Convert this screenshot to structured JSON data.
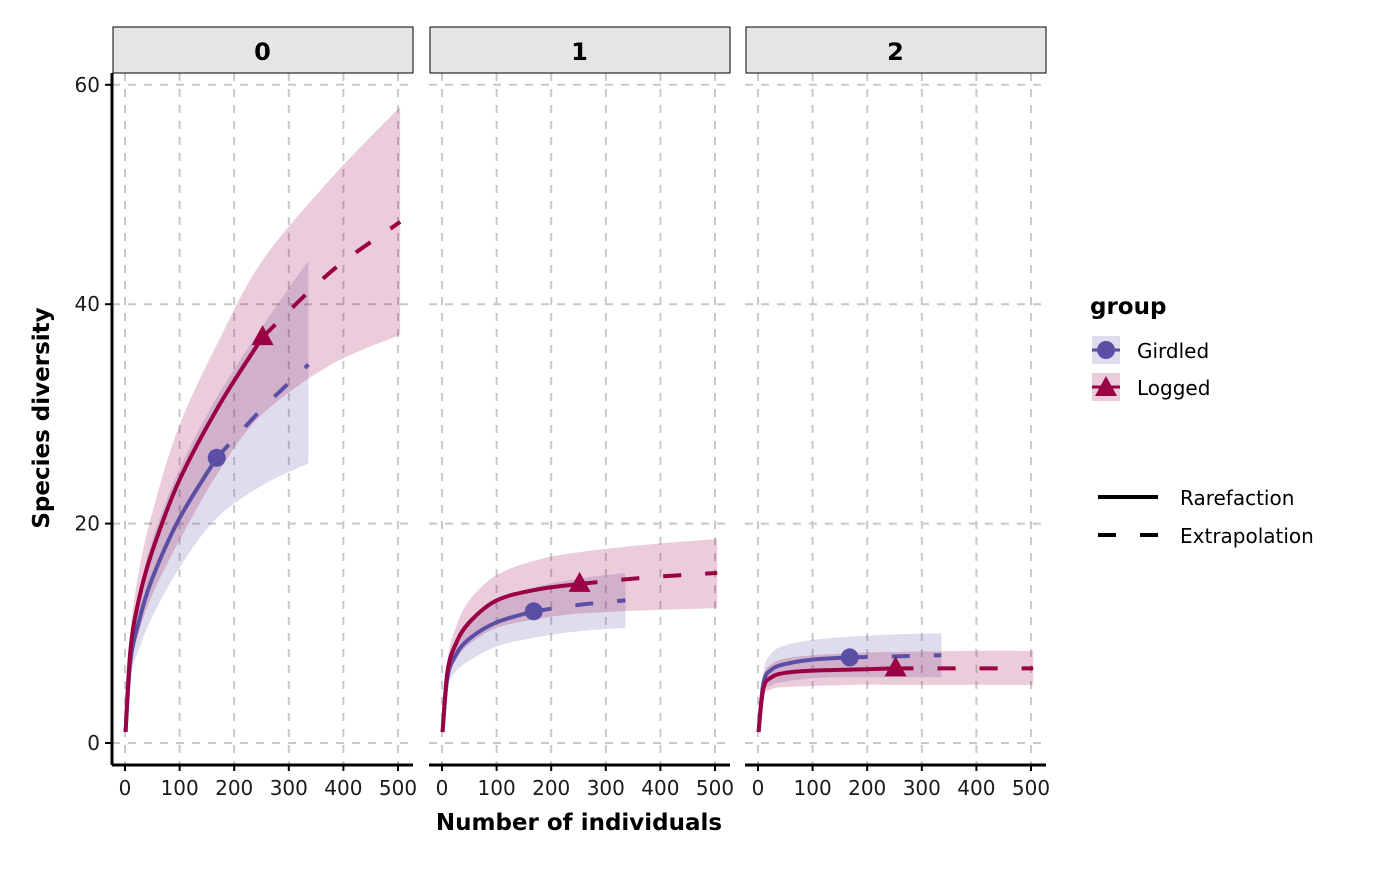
{
  "chart_data": {
    "type": "line",
    "title": "",
    "xlabel": "Number of individuals",
    "ylabel": "Species diversity",
    "ylim": [
      0,
      60
    ],
    "xlim": [
      0,
      500
    ],
    "x_ticks": [
      "0",
      "100",
      "200",
      "300",
      "400",
      "500"
    ],
    "y_ticks": [
      "0",
      "20",
      "40",
      "60"
    ],
    "grid": true,
    "facets": [
      "0",
      "1",
      "2"
    ],
    "legend": {
      "title": "group",
      "placement": "right",
      "groups": [
        {
          "name": "Girdled",
          "color": "#5B4FA5",
          "shape": "circle"
        },
        {
          "name": "Logged",
          "color": "#9B0045",
          "shape": "triangle"
        }
      ],
      "linetypes": [
        "Rarefaction",
        "Extrapolation"
      ]
    },
    "series": [
      {
        "facet": "0",
        "group": "Girdled",
        "n_obs": 168,
        "s_obs": 26,
        "n": [
          1,
          10,
          25,
          50,
          100,
          168,
          252,
          336
        ],
        "est": [
          1,
          7.5,
          11,
          15,
          20.5,
          26,
          30.5,
          34.5
        ],
        "lower": [
          1,
          6,
          8.5,
          11.5,
          16,
          20.5,
          23.5,
          25.5
        ],
        "upper": [
          1,
          9,
          13.5,
          18.5,
          25,
          31.5,
          38,
          44
        ]
      },
      {
        "facet": "0",
        "group": "Logged",
        "n_obs": 252,
        "s_obs": 37,
        "n": [
          1,
          10,
          25,
          50,
          100,
          175,
          252,
          378,
          504
        ],
        "est": [
          1,
          8.5,
          13,
          17.5,
          24,
          31,
          37,
          43,
          47.5
        ],
        "lower": [
          1,
          6.5,
          10,
          13.5,
          18.5,
          25,
          30,
          34.5,
          37.2
        ],
        "upper": [
          1,
          10,
          15.5,
          21,
          29,
          37,
          44,
          51.5,
          58
        ]
      },
      {
        "facet": "1",
        "group": "Girdled",
        "n_obs": 168,
        "s_obs": 12,
        "n": [
          1,
          10,
          25,
          50,
          100,
          168,
          252,
          336
        ],
        "est": [
          1,
          6,
          8,
          9.5,
          11,
          12,
          12.6,
          13
        ],
        "lower": [
          1,
          5,
          6.5,
          7.5,
          8.8,
          9.6,
          10.2,
          10.5
        ],
        "upper": [
          1,
          7,
          9.5,
          11.3,
          13,
          14.2,
          15,
          15.5
        ]
      },
      {
        "facet": "1",
        "group": "Logged",
        "n_obs": 252,
        "s_obs": 14.5,
        "n": [
          1,
          10,
          25,
          50,
          100,
          175,
          252,
          378,
          504
        ],
        "est": [
          1,
          6.5,
          9,
          11,
          13,
          14,
          14.5,
          15.1,
          15.5
        ],
        "lower": [
          1,
          5.5,
          7.5,
          9,
          10.5,
          11.3,
          11.8,
          12.1,
          12.3
        ],
        "upper": [
          1,
          7.5,
          10.5,
          13,
          15.3,
          16.7,
          17.4,
          18.1,
          18.6
        ]
      },
      {
        "facet": "2",
        "group": "Girdled",
        "n_obs": 168,
        "s_obs": 7.8,
        "n": [
          1,
          10,
          25,
          50,
          100,
          168,
          252,
          336
        ],
        "est": [
          1,
          5.5,
          6.7,
          7.2,
          7.6,
          7.8,
          7.9,
          8
        ],
        "lower": [
          1,
          4.5,
          5.3,
          5.6,
          5.9,
          6,
          6,
          6
        ],
        "upper": [
          1,
          6.5,
          8.2,
          8.9,
          9.4,
          9.7,
          9.9,
          10
        ]
      },
      {
        "facet": "2",
        "group": "Logged",
        "n_obs": 252,
        "s_obs": 6.8,
        "n": [
          1,
          10,
          25,
          50,
          100,
          175,
          252,
          378,
          504
        ],
        "est": [
          1,
          5,
          6,
          6.4,
          6.6,
          6.7,
          6.8,
          6.8,
          6.8
        ],
        "lower": [
          1,
          4.2,
          4.9,
          5.1,
          5.2,
          5.3,
          5.3,
          5.3,
          5.3
        ],
        "upper": [
          1,
          6,
          7.2,
          7.7,
          8,
          8.2,
          8.3,
          8.4,
          8.4
        ]
      }
    ]
  }
}
